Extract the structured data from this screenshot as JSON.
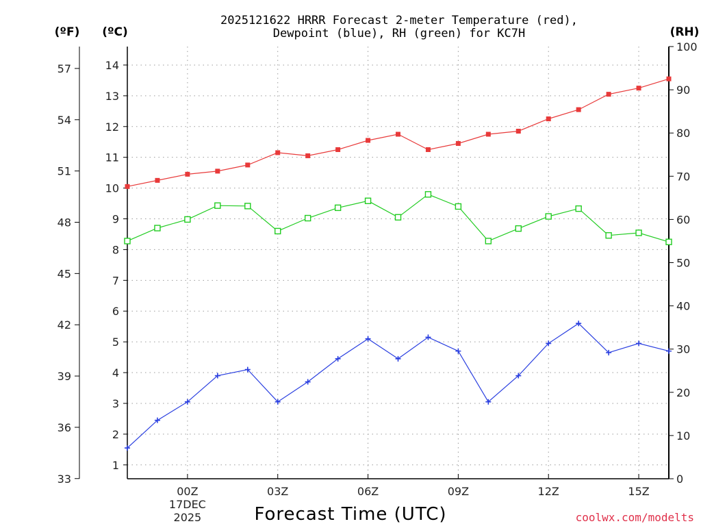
{
  "title_line1": "2025121622 HRRR Forecast 2-meter Temperature (red),",
  "title_line2": "Dewpoint (blue), RH (green) for KC7H",
  "units": {
    "fahrenheit": "(ºF)",
    "celsius": "(ºC)",
    "rh": "(RH)"
  },
  "credit": "coolwx.com/modelts",
  "chart_data": {
    "type": "line",
    "title": "2025121622 HRRR Forecast 2-meter Temperature (red), Dewpoint (blue), RH (green) for KC7H",
    "xlabel": "Forecast Time (UTC)",
    "x_hours": [
      22,
      23,
      24,
      25,
      26,
      27,
      28,
      29,
      30,
      31,
      32,
      33,
      34,
      35,
      36,
      37,
      38,
      39,
      40
    ],
    "xlim": [
      22,
      40
    ],
    "x_ticks": [
      {
        "hour": 24,
        "label": "00Z",
        "sub1": "17DEC",
        "sub2": "2025"
      },
      {
        "hour": 27,
        "label": "03Z"
      },
      {
        "hour": 30,
        "label": "06Z"
      },
      {
        "hour": 33,
        "label": "09Z"
      },
      {
        "hour": 36,
        "label": "12Z"
      },
      {
        "hour": 39,
        "label": "15Z"
      }
    ],
    "y_celsius": {
      "ylim": [
        0.55,
        14.6
      ],
      "ticks": [
        1,
        2,
        3,
        4,
        5,
        6,
        7,
        8,
        9,
        10,
        11,
        12,
        13,
        14
      ]
    },
    "y_fahrenheit": {
      "ticks": [
        33,
        36,
        39,
        42,
        45,
        48,
        51,
        54,
        57
      ]
    },
    "y_rh": {
      "ylim": [
        0,
        100
      ],
      "ticks": [
        0,
        10,
        20,
        30,
        40,
        50,
        60,
        70,
        80,
        90,
        100
      ]
    },
    "series": [
      {
        "name": "Temperature",
        "axis": "celsius",
        "color": "#e83a3a",
        "marker": "filled-square",
        "values": [
          10.05,
          10.25,
          10.45,
          10.55,
          10.75,
          11.15,
          11.05,
          11.25,
          11.55,
          11.75,
          11.25,
          11.45,
          11.75,
          11.85,
          12.25,
          12.55,
          13.05,
          13.25,
          13.55
        ]
      },
      {
        "name": "Dewpoint",
        "axis": "celsius",
        "color": "#2a3fe0",
        "marker": "plus",
        "values": [
          1.55,
          2.45,
          3.05,
          3.9,
          4.1,
          3.05,
          3.7,
          4.45,
          5.1,
          4.45,
          5.15,
          4.7,
          3.05,
          3.9,
          4.95,
          5.6,
          4.65,
          4.95,
          4.7
        ]
      },
      {
        "name": "RH",
        "axis": "rh",
        "color": "#22cc22",
        "marker": "open-square",
        "values": [
          55.0,
          58.0,
          60.0,
          63.2,
          63.1,
          57.3,
          60.3,
          62.7,
          64.3,
          60.5,
          65.8,
          63.0,
          55.0,
          57.9,
          60.7,
          62.5,
          56.3,
          56.9,
          54.8
        ]
      }
    ]
  }
}
